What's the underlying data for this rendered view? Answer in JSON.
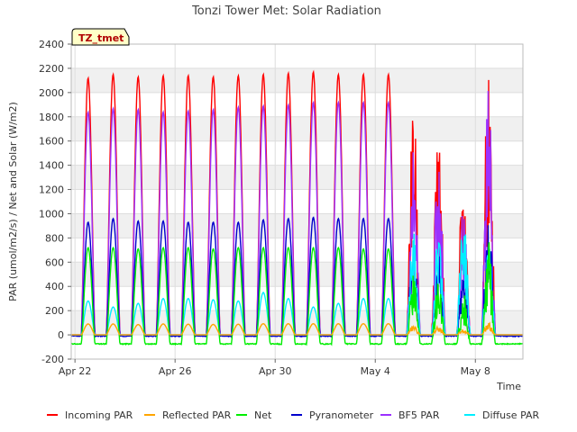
{
  "chart_data": {
    "type": "line",
    "title": "Tonzi Tower Met: Solar Radiation",
    "xlabel": "Time",
    "ylabel": "PAR (umol/m2/s) / Net and Solar (W/m2)",
    "tag": "TZ_tmet",
    "ylim": [
      -200,
      2400
    ],
    "y_ticks": [
      -200,
      0,
      200,
      400,
      600,
      800,
      1000,
      1200,
      1400,
      1600,
      1800,
      2000,
      2200,
      2400
    ],
    "xlim_days": [
      -0.15,
      17.9
    ],
    "x_ticks": [
      {
        "label": "Apr 22",
        "day": 0
      },
      {
        "label": "Apr 26",
        "day": 4
      },
      {
        "label": "Apr 30",
        "day": 8
      },
      {
        "label": "May 4",
        "day": 12
      },
      {
        "label": "May 8",
        "day": 16
      }
    ],
    "days": [
      "Apr 22",
      "Apr 23",
      "Apr 24",
      "Apr 25",
      "Apr 26",
      "Apr 27",
      "Apr 28",
      "Apr 29",
      "Apr 30",
      "May 1",
      "May 2",
      "May 3",
      "May 4",
      "May 5",
      "May 6",
      "May 7",
      "May 8",
      "May 9"
    ],
    "legend_position": "bottom",
    "grid": true,
    "series": [
      {
        "name": "Incoming PAR",
        "color": "#ff0000",
        "daily_peak": [
          2120,
          2150,
          2130,
          2140,
          2140,
          2130,
          2140,
          2150,
          2160,
          2170,
          2150,
          2150,
          2150,
          1950,
          1850,
          1450,
          2330,
          0
        ],
        "night": 0
      },
      {
        "name": "Reflected PAR",
        "color": "#ffa500",
        "daily_peak": [
          90,
          90,
          85,
          90,
          88,
          86,
          88,
          92,
          92,
          92,
          92,
          92,
          92,
          80,
          70,
          50,
          100,
          0
        ],
        "night": 0
      },
      {
        "name": "Net",
        "color": "#00ee00",
        "daily_peak": [
          720,
          720,
          710,
          720,
          720,
          710,
          720,
          720,
          720,
          720,
          720,
          710,
          710,
          600,
          500,
          350,
          780,
          0
        ],
        "night": -75
      },
      {
        "name": "Pyranometer",
        "color": "#0000cc",
        "daily_peak": [
          930,
          960,
          940,
          940,
          930,
          930,
          930,
          950,
          960,
          970,
          960,
          960,
          960,
          830,
          700,
          500,
          1010,
          0
        ],
        "night": -10
      },
      {
        "name": "BF5 PAR",
        "color": "#9b30ff",
        "daily_peak": [
          1840,
          1870,
          1860,
          1840,
          1850,
          1860,
          1880,
          1890,
          1900,
          1920,
          1920,
          1920,
          1920,
          1650,
          1550,
          1100,
          2080,
          0
        ],
        "night": 0
      },
      {
        "name": "Diffuse PAR",
        "color": "#00eeff",
        "daily_peak": [
          280,
          230,
          260,
          300,
          300,
          290,
          280,
          350,
          300,
          230,
          260,
          300,
          300,
          880,
          920,
          1050,
          840,
          0
        ],
        "night": 0
      }
    ]
  }
}
